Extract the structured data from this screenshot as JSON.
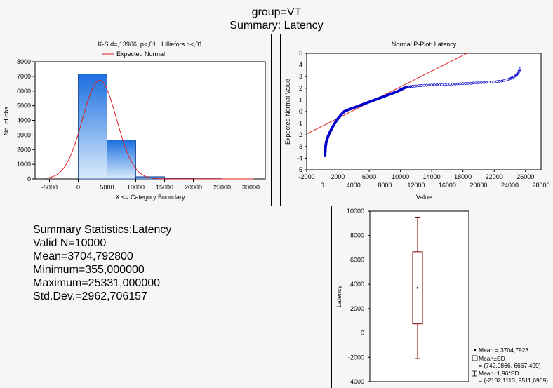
{
  "header": {
    "line1": "group=VT",
    "line2": "Summary: Latency"
  },
  "chart_data": [
    {
      "type": "bar",
      "title": "K-S d=,13966, p<,01 ; Lilliefors p<,01",
      "legend": "Expected Normal",
      "xlabel": "X <= Category Boundary",
      "ylabel": "No. of obs.",
      "xlim": [
        -7500,
        32500
      ],
      "ylim": [
        0,
        8000
      ],
      "xticks": [
        "-5000",
        "0",
        "5000",
        "10000",
        "15000",
        "20000",
        "25000",
        "30000"
      ],
      "xtick_values": [
        -5000,
        0,
        5000,
        10000,
        15000,
        20000,
        25000,
        30000
      ],
      "yticks": [
        "0",
        "1000",
        "2000",
        "3000",
        "4000",
        "5000",
        "6000",
        "7000",
        "8000"
      ],
      "bins": [
        {
          "from": 0,
          "to": 5000,
          "count": 7150
        },
        {
          "from": 5000,
          "to": 10000,
          "count": 2650
        },
        {
          "from": 10000,
          "to": 15000,
          "count": 150
        },
        {
          "from": 15000,
          "to": 20000,
          "count": 30
        },
        {
          "from": 20000,
          "to": 25000,
          "count": 20
        }
      ],
      "normal_curve": {
        "mean": 3704.7928,
        "sd": 2962.706157,
        "n": 10000,
        "bin_width": 5000
      }
    },
    {
      "type": "scatter",
      "title": "Normal P-Plot: Latency",
      "xlabel": "Value",
      "ylabel": "Expected Normal Value",
      "xlim": [
        -2000,
        28000
      ],
      "ylim": [
        -5,
        5
      ],
      "xticks_top": [
        "-2000",
        "2000",
        "6000",
        "10000",
        "14000",
        "18000",
        "22000",
        "26000"
      ],
      "xticks_bottom": [
        "0",
        "4000",
        "8000",
        "12000",
        "16000",
        "20000",
        "24000",
        "28000"
      ],
      "yticks": [
        "-5",
        "-4",
        "-3",
        "-2",
        "-1",
        "0",
        "1",
        "2",
        "3",
        "4",
        "5"
      ],
      "points": [
        [
          355,
          -3.8
        ],
        [
          360,
          -3.6
        ],
        [
          370,
          -3.4
        ],
        [
          390,
          -3.2
        ],
        [
          420,
          -3.0
        ],
        [
          460,
          -2.8
        ],
        [
          520,
          -2.6
        ],
        [
          600,
          -2.4
        ],
        [
          700,
          -2.2
        ],
        [
          820,
          -2.0
        ],
        [
          950,
          -1.8
        ],
        [
          1100,
          -1.6
        ],
        [
          1250,
          -1.4
        ],
        [
          1420,
          -1.2
        ],
        [
          1600,
          -1.0
        ],
        [
          1800,
          -0.8
        ],
        [
          2000,
          -0.6
        ],
        [
          2250,
          -0.4
        ],
        [
          2500,
          -0.2
        ],
        [
          2800,
          0.0
        ],
        [
          3100,
          0.1
        ],
        [
          3500,
          0.2
        ],
        [
          3900,
          0.3
        ],
        [
          4300,
          0.4
        ],
        [
          4700,
          0.5
        ],
        [
          5100,
          0.6
        ],
        [
          5500,
          0.7
        ],
        [
          5900,
          0.8
        ],
        [
          6300,
          0.9
        ],
        [
          6700,
          1.0
        ],
        [
          7100,
          1.1
        ],
        [
          7500,
          1.2
        ],
        [
          7900,
          1.3
        ],
        [
          8300,
          1.4
        ],
        [
          8700,
          1.5
        ],
        [
          9100,
          1.6
        ],
        [
          9500,
          1.7
        ],
        [
          9800,
          1.8
        ],
        [
          10100,
          1.9
        ],
        [
          10400,
          2.0
        ],
        [
          10800,
          2.1
        ],
        [
          11300,
          2.15
        ],
        [
          12000,
          2.2
        ],
        [
          13000,
          2.25
        ],
        [
          14000,
          2.28
        ],
        [
          15000,
          2.3
        ],
        [
          16000,
          2.33
        ],
        [
          17000,
          2.36
        ],
        [
          18000,
          2.4
        ],
        [
          19000,
          2.43
        ],
        [
          20000,
          2.47
        ],
        [
          21000,
          2.5
        ],
        [
          22000,
          2.55
        ],
        [
          23000,
          2.62
        ],
        [
          23800,
          2.75
        ],
        [
          24300,
          2.9
        ],
        [
          24800,
          3.1
        ],
        [
          25100,
          3.35
        ],
        [
          25331,
          3.7
        ]
      ],
      "reference_line": {
        "intercept_value": 3704.7928,
        "slope_sd": 2962.706157
      }
    },
    {
      "type": "box",
      "ylabel": "Latency",
      "ylim": [
        -4000,
        10000
      ],
      "yticks": [
        "-4000",
        "-2000",
        "0",
        "2000",
        "4000",
        "6000",
        "8000",
        "10000"
      ],
      "mean": 3704.7928,
      "box": [
        742.0866,
        6667.499
      ],
      "whiskers": [
        -2102.1113,
        9511.6969
      ],
      "legend": [
        "Mean = 3704,7928",
        "Mean±SD",
        "= (742,0866, 6667,499)",
        "Mean±1,96*SD",
        "= (-2102,1113, 9511,6969)"
      ]
    }
  ],
  "stats": {
    "heading": "Summary Statistics:Latency",
    "valid": "Valid N=10000",
    "mean": "Mean=3704,792800",
    "min": "Minimum=355,000000",
    "max": "Maximum=25331,000000",
    "sd": "Std.Dev.=2962,706157"
  },
  "colors": {
    "bar_top": "#1c6fe0",
    "bar_bottom": "#d9ebfb",
    "curve": "#e02020",
    "points": "#0000cc",
    "box": "#800000"
  }
}
